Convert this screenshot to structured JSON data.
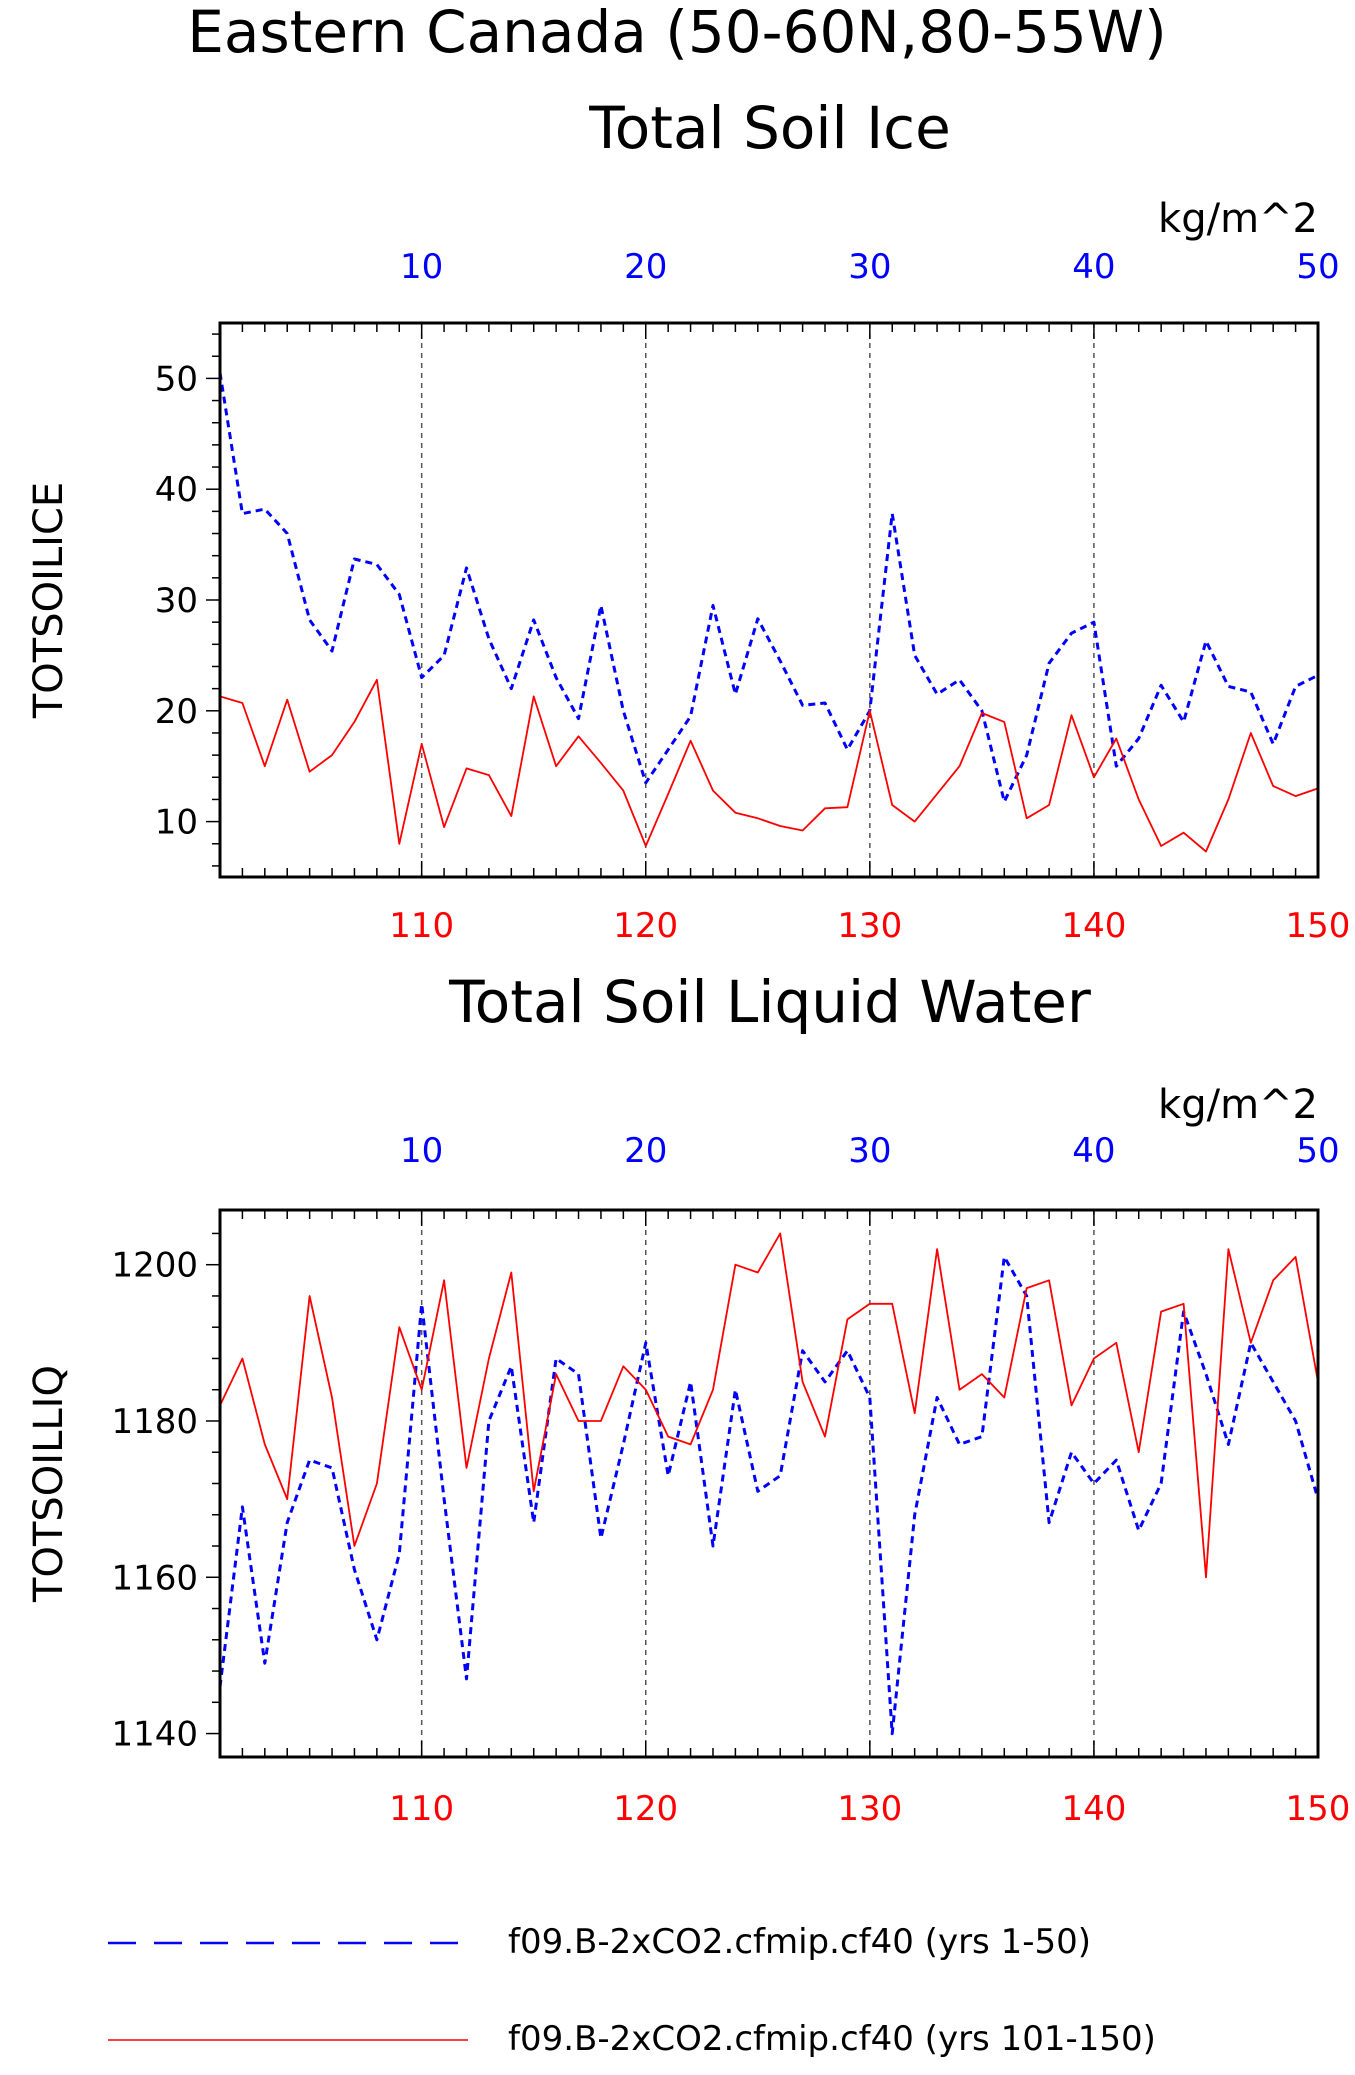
{
  "title": "Eastern Canada (50-60N,80-55W)",
  "units": "kg/m^2",
  "colors": {
    "series1": "#0000ff",
    "series2": "#ff0000",
    "axis": "#000000",
    "grid": "#555555"
  },
  "legend": {
    "placement": "bottom",
    "entries": [
      {
        "label": "f09.B-2xCO2.cfmip.cf40 (yrs 1-50)",
        "color": "#0000ff",
        "style": "dashed"
      },
      {
        "label": "f09.B-2xCO2.cfmip.cf40 (yrs 101-150)",
        "color": "#ff0000",
        "style": "solid"
      }
    ]
  },
  "chart_data": [
    {
      "type": "line",
      "title": "Total Soil Ice",
      "ylabel": "TOTSOILICE",
      "units": "kg/m^2",
      "ylim": [
        5,
        55
      ],
      "yticks": [
        10,
        20,
        30,
        40,
        50
      ],
      "top_axis": {
        "range": [
          1,
          50
        ],
        "ticks": [
          10,
          20,
          30,
          40,
          50
        ],
        "color": "#0000ff"
      },
      "bottom_axis": {
        "range": [
          101,
          150
        ],
        "ticks": [
          110,
          120,
          130,
          140,
          150
        ],
        "color": "#ff0000"
      },
      "grid_x": [
        10,
        20,
        30,
        40
      ],
      "series": [
        {
          "x_axis": "top",
          "color": "#0000ff",
          "style": "dashed",
          "values": [
            50.5,
            37.8,
            38.2,
            36.0,
            28.2,
            25.4,
            33.7,
            33.2,
            30.5,
            23.0,
            25.0,
            32.9,
            26.5,
            22.0,
            28.2,
            23.0,
            19.3,
            29.5,
            20.0,
            13.5,
            16.5,
            19.5,
            29.5,
            21.5,
            28.3,
            24.5,
            20.5,
            20.7,
            16.5,
            20.0,
            37.8,
            25.0,
            21.5,
            22.8,
            20.0,
            11.8,
            16.0,
            24.3,
            27.0,
            28.0,
            15.0,
            17.5,
            22.3,
            19.0,
            26.3,
            22.2,
            21.7,
            17.0,
            22.2,
            23.2
          ]
        },
        {
          "x_axis": "bottom",
          "color": "#ff0000",
          "style": "solid",
          "values": [
            21.3,
            20.7,
            15.0,
            21.0,
            14.5,
            16.0,
            19.0,
            22.8,
            8.0,
            17.0,
            9.5,
            14.8,
            14.2,
            10.5,
            21.3,
            15.0,
            17.7,
            15.3,
            12.8,
            7.8,
            12.5,
            17.3,
            12.8,
            10.8,
            10.3,
            9.6,
            9.2,
            11.2,
            11.3,
            20.0,
            11.5,
            10.0,
            12.5,
            15.0,
            19.8,
            19.0,
            10.3,
            11.5,
            19.6,
            14.0,
            17.5,
            12.0,
            7.8,
            9.0,
            7.3,
            12.0,
            18.0,
            13.2,
            12.3,
            13.0
          ]
        }
      ]
    },
    {
      "type": "line",
      "title": "Total Soil Liquid Water",
      "ylabel": "TOTSOILLIQ",
      "units": "kg/m^2",
      "ylim": [
        1137,
        1207
      ],
      "yticks": [
        1140,
        1160,
        1180,
        1200
      ],
      "top_axis": {
        "range": [
          1,
          50
        ],
        "ticks": [
          10,
          20,
          30,
          40,
          50
        ],
        "color": "#0000ff"
      },
      "bottom_axis": {
        "range": [
          101,
          150
        ],
        "ticks": [
          110,
          120,
          130,
          140,
          150
        ],
        "color": "#ff0000"
      },
      "grid_x": [
        10,
        20,
        30,
        40
      ],
      "series": [
        {
          "x_axis": "top",
          "color": "#0000ff",
          "style": "dashed",
          "values": [
            1146,
            1169,
            1149,
            1167,
            1175,
            1174,
            1161,
            1152,
            1163,
            1195,
            1170,
            1147,
            1180,
            1187,
            1167,
            1188,
            1186,
            1165,
            1177,
            1190,
            1173,
            1185,
            1164,
            1184,
            1171,
            1173,
            1189,
            1185,
            1189,
            1183,
            1140,
            1168,
            1183,
            1177,
            1178,
            1201,
            1196,
            1167,
            1176,
            1172,
            1175,
            1166,
            1172,
            1194,
            1186,
            1177,
            1190,
            1185,
            1180,
            1170
          ]
        },
        {
          "x_axis": "bottom",
          "color": "#ff0000",
          "style": "solid",
          "values": [
            1182,
            1188,
            1177,
            1170,
            1196,
            1183,
            1164,
            1172,
            1192,
            1184,
            1198,
            1174,
            1188,
            1199,
            1171,
            1186,
            1180,
            1180,
            1187,
            1184,
            1178,
            1177,
            1184,
            1200,
            1199,
            1204,
            1185,
            1178,
            1193,
            1195,
            1195,
            1181,
            1202,
            1184,
            1186,
            1183,
            1197,
            1198,
            1182,
            1188,
            1190,
            1176,
            1194,
            1195,
            1160,
            1202,
            1190,
            1198,
            1201,
            1185
          ]
        }
      ]
    }
  ]
}
